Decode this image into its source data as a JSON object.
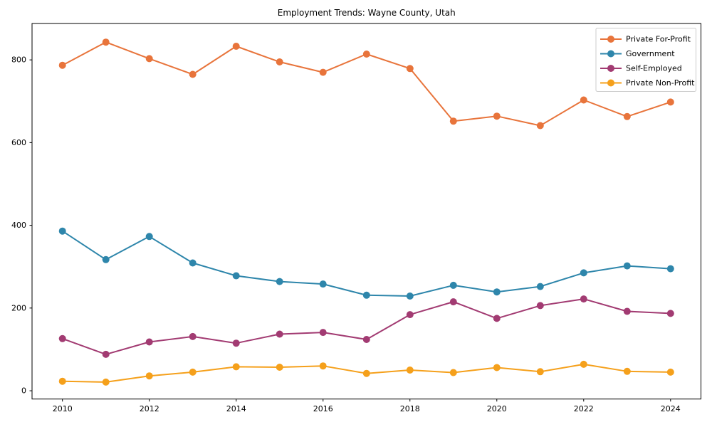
{
  "chart_data": {
    "type": "line",
    "title": "Employment Trends: Wayne County, Utah",
    "xlabel": "",
    "ylabel": "",
    "x": [
      2010,
      2011,
      2012,
      2013,
      2014,
      2015,
      2016,
      2017,
      2018,
      2019,
      2020,
      2021,
      2022,
      2023,
      2024
    ],
    "xticks": [
      2010,
      2012,
      2014,
      2016,
      2018,
      2020,
      2022,
      2024
    ],
    "yticks": [
      0,
      200,
      400,
      600,
      800
    ],
    "xlim": [
      2009.3,
      2024.7
    ],
    "ylim": [
      -20,
      888
    ],
    "grid": false,
    "legend_position": "upper right",
    "marker": "circle",
    "frame_color": "#000000",
    "legend_border_color": "#cccccc",
    "series": [
      {
        "name": "Private For-Profit",
        "color": "#e8743b",
        "values": [
          787,
          843,
          803,
          765,
          833,
          795,
          770,
          814,
          779,
          652,
          664,
          641,
          703,
          663,
          698
        ]
      },
      {
        "name": "Government",
        "color": "#2e86ab",
        "values": [
          386,
          317,
          373,
          309,
          278,
          264,
          258,
          231,
          229,
          255,
          239,
          252,
          285,
          302,
          295
        ]
      },
      {
        "name": "Self-Employed",
        "color": "#a23b72",
        "values": [
          126,
          88,
          118,
          131,
          115,
          137,
          141,
          124,
          184,
          215,
          175,
          206,
          222,
          192,
          187
        ]
      },
      {
        "name": "Private Non-Profit",
        "color": "#f5a01b",
        "values": [
          23,
          21,
          36,
          45,
          58,
          57,
          60,
          42,
          50,
          44,
          56,
          46,
          64,
          47,
          45
        ]
      }
    ]
  }
}
